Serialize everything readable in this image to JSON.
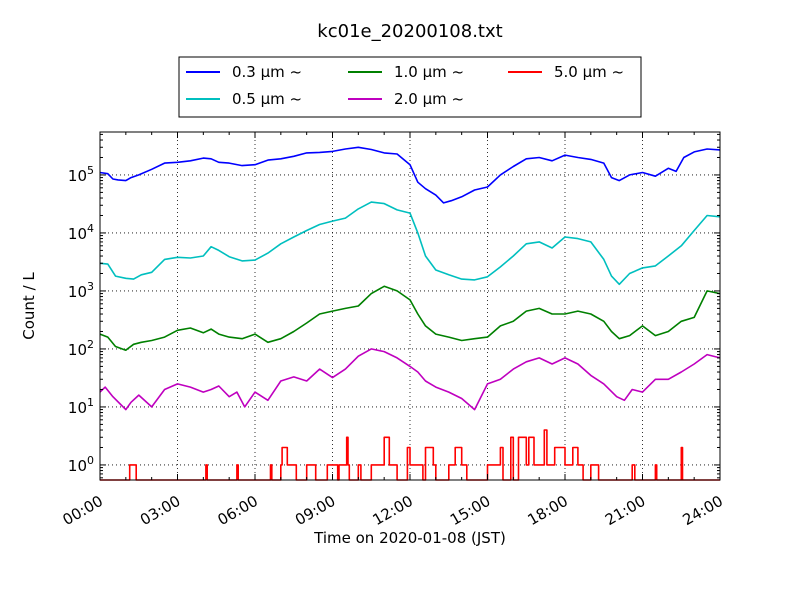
{
  "chart_data": {
    "type": "line",
    "title": "kc01e_20200108.txt",
    "xlabel": "Time on 2020-01-08 (JST)",
    "ylabel": "Count / L",
    "xlim": [
      0,
      24
    ],
    "ylim": [
      0.55,
      550000
    ],
    "yscale": "log",
    "grid": true,
    "legend_placement": "top-center",
    "xticks": [
      0,
      3,
      6,
      9,
      12,
      15,
      18,
      21,
      24
    ],
    "xtick_labels": [
      "00:00",
      "03:00",
      "06:00",
      "09:00",
      "12:00",
      "15:00",
      "18:00",
      "21:00",
      "24:00"
    ],
    "yticks": [
      1,
      10,
      100,
      1000,
      10000,
      100000
    ],
    "ytick_labels": [
      {
        "base": "10",
        "exp": "0"
      },
      {
        "base": "10",
        "exp": "1"
      },
      {
        "base": "10",
        "exp": "2"
      },
      {
        "base": "10",
        "exp": "3"
      },
      {
        "base": "10",
        "exp": "4"
      },
      {
        "base": "10",
        "exp": "5"
      }
    ],
    "series": [
      {
        "name": "0.3 μm ~",
        "legend_num": "0.3",
        "color": "#0000ff",
        "x": [
          0,
          0.3,
          0.5,
          0.7,
          1.0,
          1.2,
          1.5,
          2.0,
          2.5,
          3.0,
          3.5,
          4.0,
          4.3,
          4.6,
          5.0,
          5.5,
          6.0,
          6.5,
          7.0,
          7.5,
          8.0,
          8.5,
          9.0,
          9.5,
          10.0,
          10.5,
          11.0,
          11.5,
          12.0,
          12.3,
          12.6,
          13.0,
          13.3,
          13.6,
          14.0,
          14.5,
          15.0,
          15.5,
          16.0,
          16.5,
          17.0,
          17.5,
          18.0,
          18.5,
          19.0,
          19.5,
          19.8,
          20.1,
          20.5,
          21.0,
          21.5,
          22.0,
          22.3,
          22.6,
          23.0,
          23.5,
          24.0
        ],
        "values": [
          110000,
          105000,
          85000,
          82000,
          80000,
          90000,
          100000,
          125000,
          160000,
          165000,
          175000,
          195000,
          190000,
          165000,
          160000,
          145000,
          150000,
          180000,
          190000,
          210000,
          240000,
          245000,
          255000,
          280000,
          300000,
          275000,
          240000,
          230000,
          150000,
          75000,
          58000,
          45000,
          33000,
          36000,
          42000,
          55000,
          62000,
          100000,
          140000,
          190000,
          200000,
          175000,
          220000,
          200000,
          185000,
          160000,
          90000,
          80000,
          100000,
          110000,
          95000,
          130000,
          115000,
          200000,
          250000,
          280000,
          270000
        ]
      },
      {
        "name": "0.5 μm ~",
        "legend_num": "0.5",
        "color": "#00bfbf",
        "x": [
          0,
          0.3,
          0.6,
          1.0,
          1.3,
          1.6,
          2.0,
          2.5,
          3.0,
          3.5,
          4.0,
          4.3,
          4.6,
          5.0,
          5.5,
          6.0,
          6.5,
          7.0,
          7.5,
          8.0,
          8.5,
          9.0,
          9.5,
          10.0,
          10.5,
          11.0,
          11.5,
          12.0,
          12.3,
          12.6,
          13.0,
          13.5,
          14.0,
          14.5,
          15.0,
          15.5,
          16.0,
          16.5,
          17.0,
          17.5,
          18.0,
          18.5,
          19.0,
          19.5,
          19.8,
          20.1,
          20.5,
          21.0,
          21.5,
          22.0,
          22.5,
          23.0,
          23.5,
          24.0
        ],
        "values": [
          3000,
          2900,
          1800,
          1650,
          1600,
          1900,
          2100,
          3500,
          3800,
          3700,
          4000,
          5800,
          5000,
          3900,
          3300,
          3400,
          4500,
          6500,
          8500,
          11000,
          14000,
          16000,
          18000,
          26000,
          34000,
          32000,
          25000,
          22000,
          10000,
          4000,
          2300,
          1900,
          1600,
          1550,
          1750,
          2600,
          4000,
          6500,
          7000,
          5500,
          8500,
          8000,
          7000,
          3500,
          1800,
          1300,
          2000,
          2500,
          2700,
          4000,
          6000,
          11000,
          20000,
          19000
        ]
      },
      {
        "name": "1.0 μm ~",
        "legend_num": "1.0",
        "color": "#008000",
        "x": [
          0,
          0.3,
          0.6,
          1.0,
          1.3,
          1.6,
          2.0,
          2.5,
          3.0,
          3.5,
          4.0,
          4.3,
          4.6,
          5.0,
          5.5,
          6.0,
          6.5,
          7.0,
          7.5,
          8.0,
          8.5,
          9.0,
          9.5,
          10.0,
          10.5,
          11.0,
          11.5,
          12.0,
          12.3,
          12.6,
          13.0,
          13.5,
          14.0,
          14.5,
          15.0,
          15.5,
          16.0,
          16.5,
          17.0,
          17.5,
          18.0,
          18.5,
          19.0,
          19.5,
          19.8,
          20.1,
          20.5,
          21.0,
          21.5,
          22.0,
          22.5,
          23.0,
          23.5,
          24.0
        ],
        "values": [
          180,
          160,
          110,
          95,
          120,
          130,
          140,
          160,
          210,
          230,
          190,
          220,
          180,
          160,
          150,
          180,
          130,
          150,
          200,
          280,
          400,
          450,
          500,
          550,
          900,
          1200,
          1000,
          700,
          400,
          250,
          180,
          160,
          140,
          150,
          160,
          250,
          300,
          450,
          500,
          400,
          400,
          450,
          400,
          300,
          200,
          150,
          170,
          250,
          170,
          200,
          300,
          350,
          1000,
          900
        ]
      },
      {
        "name": "2.0 μm ~",
        "legend_num": "2.0",
        "color": "#bf00bf",
        "x": [
          0,
          0.2,
          0.5,
          0.8,
          1.0,
          1.2,
          1.5,
          2.0,
          2.5,
          3.0,
          3.5,
          4.0,
          4.3,
          4.6,
          5.0,
          5.3,
          5.6,
          6.0,
          6.5,
          7.0,
          7.5,
          8.0,
          8.5,
          9.0,
          9.5,
          10.0,
          10.5,
          11.0,
          11.5,
          12.0,
          12.3,
          12.6,
          13.0,
          13.5,
          14.0,
          14.5,
          15.0,
          15.5,
          16.0,
          16.5,
          17.0,
          17.5,
          18.0,
          18.5,
          19.0,
          19.5,
          20.0,
          20.3,
          20.6,
          21.0,
          21.5,
          22.0,
          22.5,
          23.0,
          23.5,
          24.0
        ],
        "values": [
          18,
          22,
          15,
          11,
          9,
          12,
          16,
          10,
          20,
          25,
          22,
          18,
          20,
          23,
          15,
          18,
          10,
          18,
          13,
          28,
          33,
          28,
          45,
          32,
          45,
          75,
          100,
          90,
          70,
          50,
          40,
          28,
          22,
          18,
          14,
          9,
          25,
          30,
          45,
          60,
          70,
          55,
          70,
          55,
          35,
          25,
          15,
          13,
          20,
          18,
          30,
          30,
          40,
          55,
          80,
          70
        ]
      },
      {
        "name": "5.0 μm ~",
        "legend_num": "5.0",
        "color": "#ff0000",
        "x": [
          0,
          1.15,
          1.15,
          1.4,
          1.4,
          4.1,
          4.1,
          4.15,
          4.15,
          5.3,
          5.3,
          5.35,
          5.35,
          6.6,
          6.6,
          6.65,
          6.65,
          7.0,
          7.0,
          7.05,
          7.05,
          7.25,
          7.25,
          7.6,
          7.6,
          8.0,
          8.0,
          8.35,
          8.35,
          8.8,
          8.8,
          9.2,
          9.2,
          9.25,
          9.25,
          9.55,
          9.55,
          9.6,
          9.6,
          9.65,
          9.65,
          10.0,
          10.0,
          10.1,
          10.1,
          10.5,
          10.5,
          11.0,
          11.0,
          11.2,
          11.2,
          11.5,
          11.5,
          11.9,
          11.9,
          12.0,
          12.0,
          12.5,
          12.5,
          12.6,
          12.6,
          12.9,
          12.9,
          13.0,
          13.0,
          13.5,
          13.5,
          13.6,
          13.6,
          13.75,
          13.75,
          14.0,
          14.0,
          14.2,
          14.2,
          15.0,
          15.0,
          15.5,
          15.5,
          15.6,
          15.6,
          15.9,
          15.9,
          16.0,
          16.0,
          16.2,
          16.2,
          16.5,
          16.5,
          16.6,
          16.6,
          16.8,
          16.8,
          17.2,
          17.2,
          17.3,
          17.3,
          17.6,
          17.6,
          18.0,
          18.0,
          18.3,
          18.3,
          18.5,
          18.5,
          18.7,
          18.7,
          19.0,
          19.0,
          19.3,
          19.3,
          20.6,
          20.6,
          20.7,
          20.7,
          21.5,
          21.5,
          21.55,
          21.55,
          22.5,
          22.5,
          22.55,
          22.55,
          24.0
        ],
        "values": [
          0.55,
          0.55,
          1,
          1,
          0.55,
          0.55,
          1,
          1,
          0.55,
          0.55,
          1,
          1,
          0.55,
          0.55,
          1,
          1,
          0.55,
          0.55,
          1,
          1,
          2,
          2,
          1,
          1,
          0.55,
          0.55,
          1,
          1,
          0.55,
          0.55,
          1,
          1,
          0.55,
          0.55,
          1,
          1,
          3,
          3,
          1,
          1,
          0.55,
          0.55,
          1,
          1,
          0.55,
          0.55,
          1,
          1,
          3,
          3,
          1,
          1,
          0.55,
          0.55,
          2,
          2,
          1,
          1,
          0.55,
          0.55,
          2,
          2,
          1,
          1,
          0.55,
          0.55,
          1,
          1,
          1,
          1,
          2,
          2,
          1,
          1,
          0.55,
          0.55,
          1,
          1,
          2,
          2,
          0.55,
          0.55,
          3,
          3,
          0.55,
          0.55,
          3,
          3,
          1,
          1,
          3,
          3,
          1,
          1,
          4,
          4,
          1,
          1,
          2,
          2,
          1,
          1,
          2,
          2,
          1,
          1,
          0.55,
          0.55,
          1,
          1,
          0.55,
          0.55,
          1,
          1,
          0.55,
          0.55,
          1,
          1,
          0.55,
          0.55,
          2,
          2,
          0.55,
          0.55
        ]
      }
    ]
  }
}
